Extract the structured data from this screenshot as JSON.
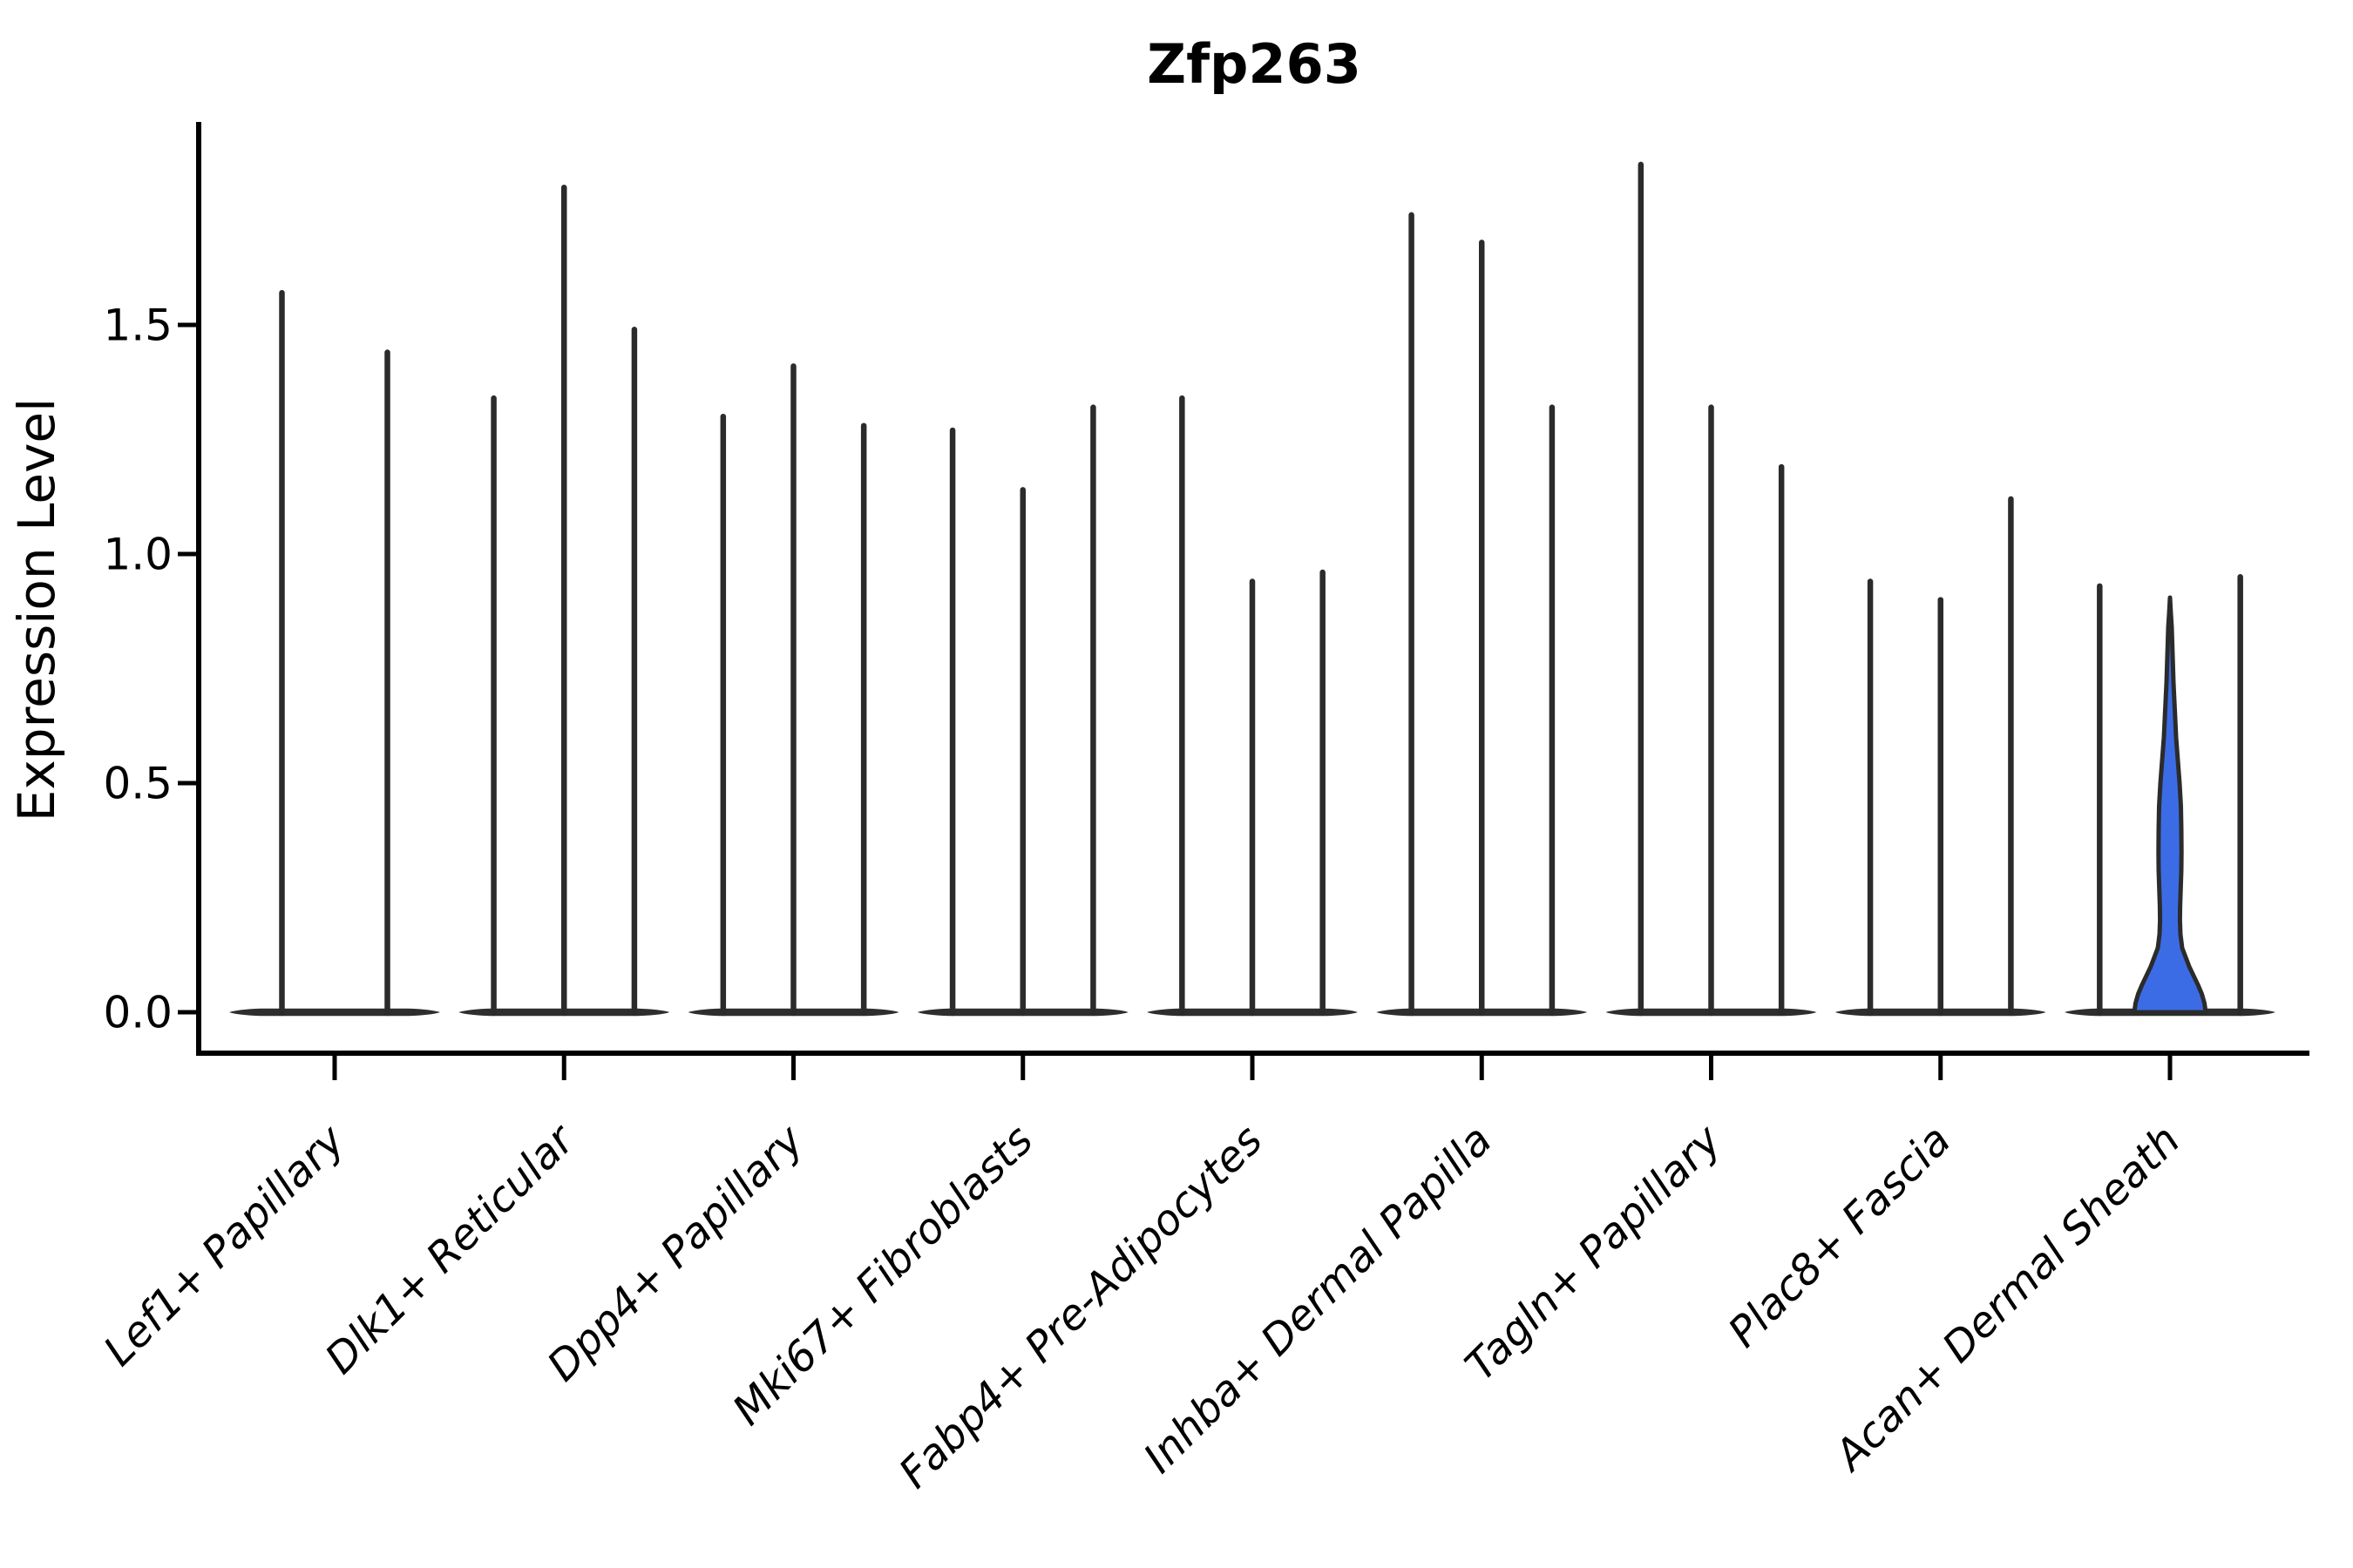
{
  "title": "Zfp263",
  "y_axis": {
    "label": "Expression Level",
    "ticks": [
      {
        "label": "0.0",
        "value": 0.0
      },
      {
        "label": "0.5",
        "value": 0.5
      },
      {
        "label": "1.0",
        "value": 1.0
      },
      {
        "label": "1.5",
        "value": 1.5
      }
    ]
  },
  "chart_data": {
    "type": "violin",
    "title": "Zfp263",
    "xlabel": "",
    "ylabel": "Expression Level",
    "ylim": [
      -0.09,
      1.94
    ],
    "grid": false,
    "legend_position": "none",
    "categories": [
      "Lef1+ Papillary",
      "Dlk1+ Reticular",
      "Dpp4+ Papillary",
      "Mki67+ Fibroblasts",
      "Fabp4+ Pre-Adipocytes",
      "Inhba+ Dermal Papilla",
      "Tagln+ Papillary",
      "Plac8+ Fascia",
      "Acan+ Dermal Sheath"
    ],
    "groups": [
      {
        "category": "Lef1+ Papillary",
        "violins": [
          {
            "max": 1.57
          },
          {
            "max": 1.44
          }
        ]
      },
      {
        "category": "Dlk1+ Reticular",
        "violins": [
          {
            "max": 1.34
          },
          {
            "max": 1.8
          },
          {
            "max": 1.49
          }
        ]
      },
      {
        "category": "Dpp4+ Papillary",
        "violins": [
          {
            "max": 1.3
          },
          {
            "max": 1.41
          },
          {
            "max": 1.28
          }
        ]
      },
      {
        "category": "Mki67+ Fibroblasts",
        "violins": [
          {
            "max": 1.27
          },
          {
            "max": 1.14
          },
          {
            "max": 1.32
          }
        ]
      },
      {
        "category": "Fabp4+ Pre-Adipocytes",
        "violins": [
          {
            "max": 1.34
          },
          {
            "max": 0.94
          },
          {
            "max": 0.96
          }
        ]
      },
      {
        "category": "Inhba+ Dermal Papilla",
        "violins": [
          {
            "max": 1.74
          },
          {
            "max": 1.68
          },
          {
            "max": 1.32
          }
        ]
      },
      {
        "category": "Tagln+ Papillary",
        "violins": [
          {
            "max": 1.85
          },
          {
            "max": 1.32
          },
          {
            "max": 1.19
          }
        ]
      },
      {
        "category": "Plac8+ Fascia",
        "violins": [
          {
            "max": 0.94
          },
          {
            "max": 0.9
          },
          {
            "max": 1.12
          }
        ]
      },
      {
        "category": "Acan+ Dermal Sheath",
        "violins": [
          {
            "max": 0.93
          },
          {
            "max": 0.91,
            "filled": true
          },
          {
            "max": 0.95
          }
        ]
      }
    ],
    "filled_violin_profile": [
      [
        0.905,
        0.0
      ],
      [
        0.87,
        1.0
      ],
      [
        0.84,
        2.0
      ],
      [
        0.78,
        3.0
      ],
      [
        0.72,
        4.0
      ],
      [
        0.66,
        5.5
      ],
      [
        0.6,
        7.0
      ],
      [
        0.55,
        9.0
      ],
      [
        0.5,
        11.0
      ],
      [
        0.45,
        12.5
      ],
      [
        0.4,
        13.0
      ],
      [
        0.35,
        13.2
      ],
      [
        0.31,
        13.0
      ],
      [
        0.27,
        12.3
      ],
      [
        0.23,
        11.6
      ],
      [
        0.2,
        11.4
      ],
      [
        0.17,
        12.0
      ],
      [
        0.14,
        14.0
      ],
      [
        0.12,
        18.0
      ],
      [
        0.1,
        22.0
      ],
      [
        0.08,
        27.0
      ],
      [
        0.06,
        32.0
      ],
      [
        0.04,
        36.5
      ],
      [
        0.02,
        39.5
      ],
      [
        0.0,
        41.0
      ]
    ],
    "colors": {
      "violin_stroke": "#2b2b2b",
      "baseline": "#2e2e2e",
      "fill_highlight": "#3c6ce5",
      "axis": "#000000",
      "text": "#000000",
      "background": "#ffffff"
    }
  }
}
